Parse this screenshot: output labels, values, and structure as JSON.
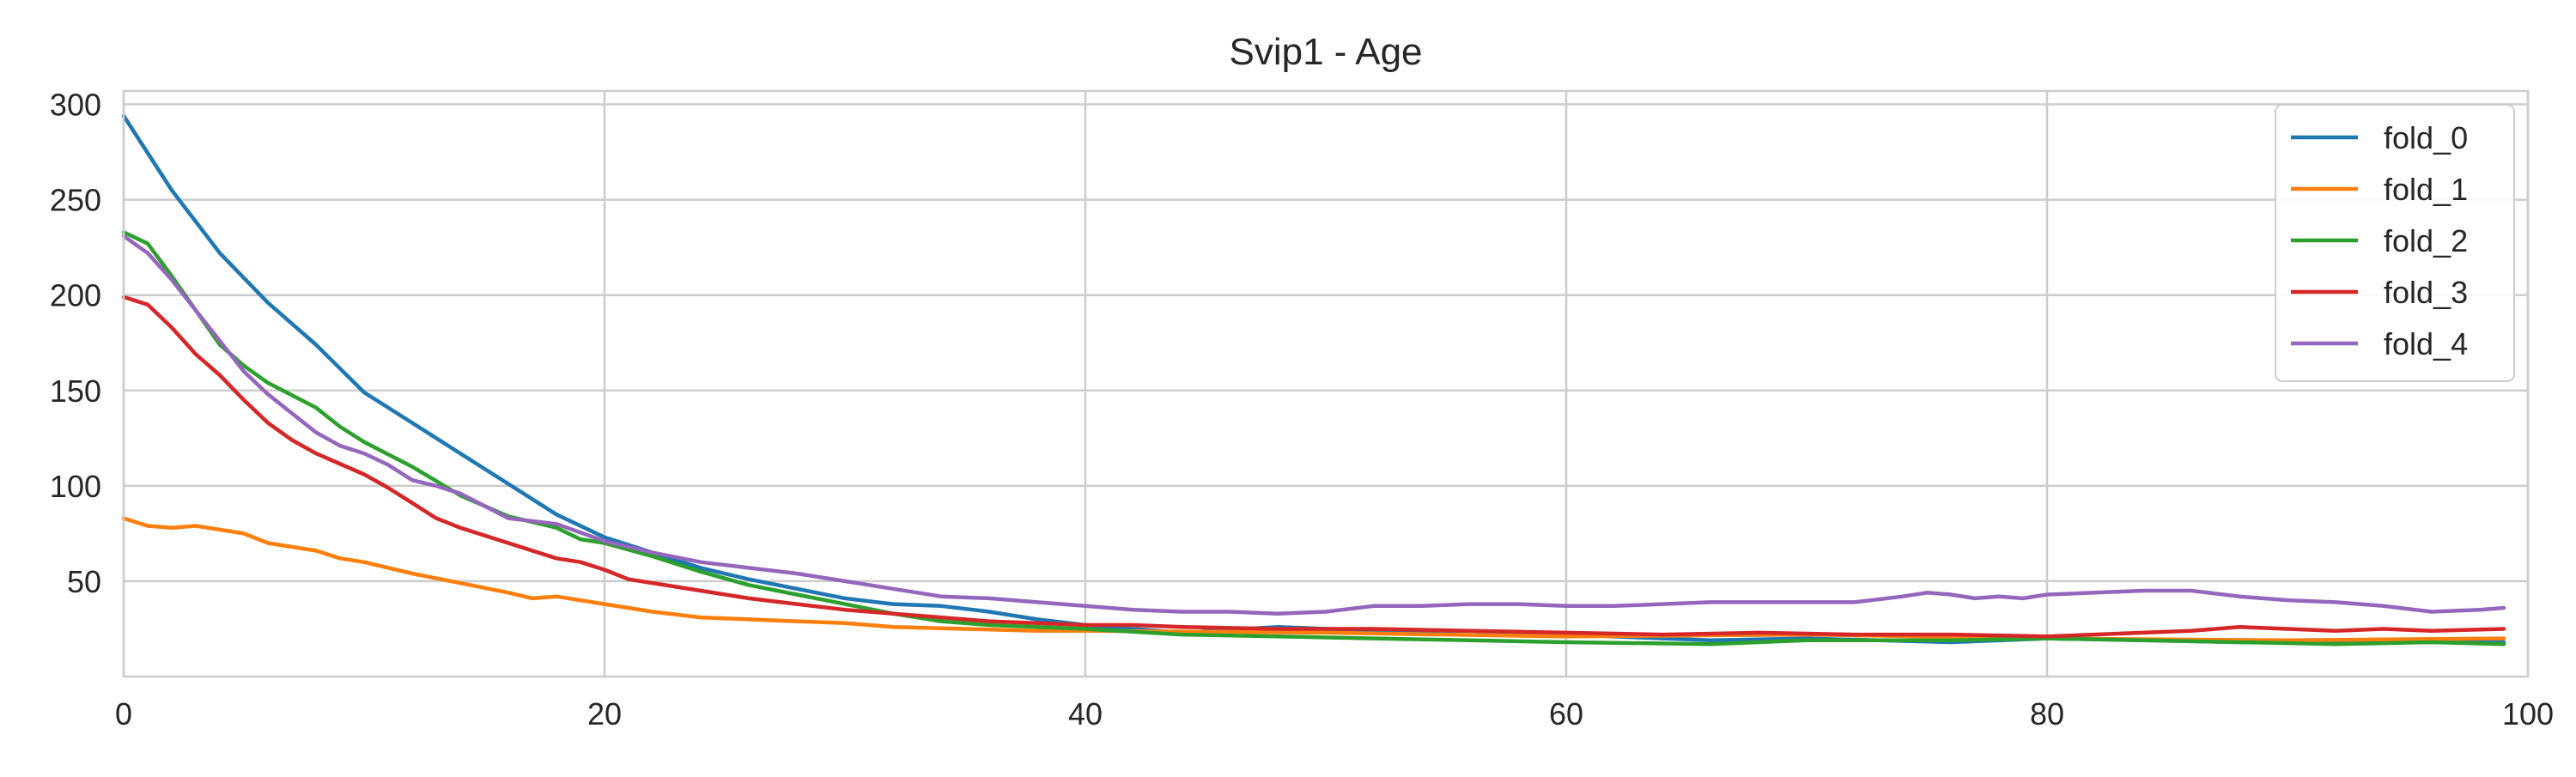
{
  "chart_data": {
    "type": "line",
    "title": "Svip1 - Age",
    "xlabel": "",
    "ylabel": "",
    "xlim": [
      0,
      100
    ],
    "ylim": [
      0,
      307
    ],
    "xticks": [
      0,
      20,
      40,
      60,
      80,
      100
    ],
    "yticks": [
      50,
      100,
      150,
      200,
      250,
      300
    ],
    "grid": true,
    "legend_position": "top-right",
    "series": [
      {
        "name": "fold_0",
        "color": "#1f77b4",
        "points": [
          [
            0,
            294
          ],
          [
            2,
            255
          ],
          [
            4,
            222
          ],
          [
            6,
            196
          ],
          [
            8,
            174
          ],
          [
            10,
            149
          ],
          [
            12,
            133
          ],
          [
            14,
            117
          ],
          [
            16,
            101
          ],
          [
            18,
            85
          ],
          [
            20,
            73
          ],
          [
            22,
            65
          ],
          [
            24,
            57
          ],
          [
            26,
            51
          ],
          [
            28,
            46
          ],
          [
            30,
            41
          ],
          [
            32,
            38
          ],
          [
            34,
            37
          ],
          [
            36,
            34
          ],
          [
            38,
            30
          ],
          [
            40,
            27
          ],
          [
            44,
            23
          ],
          [
            48,
            26
          ],
          [
            52,
            24
          ],
          [
            56,
            24
          ],
          [
            60,
            22
          ],
          [
            66,
            19
          ],
          [
            70,
            20
          ],
          [
            76,
            18
          ],
          [
            80,
            20
          ],
          [
            84,
            19
          ],
          [
            88,
            18
          ],
          [
            92,
            18
          ],
          [
            96,
            18
          ],
          [
            99,
            18
          ]
        ]
      },
      {
        "name": "fold_1",
        "color": "#ff7f0e",
        "points": [
          [
            0,
            83
          ],
          [
            1,
            79
          ],
          [
            2,
            78
          ],
          [
            3,
            79
          ],
          [
            4,
            77
          ],
          [
            5,
            75
          ],
          [
            6,
            70
          ],
          [
            8,
            66
          ],
          [
            9,
            62
          ],
          [
            10,
            60
          ],
          [
            12,
            54
          ],
          [
            14,
            49
          ],
          [
            16,
            44
          ],
          [
            17,
            41
          ],
          [
            18,
            42
          ],
          [
            20,
            38
          ],
          [
            22,
            34
          ],
          [
            24,
            31
          ],
          [
            26,
            30
          ],
          [
            28,
            29
          ],
          [
            30,
            28
          ],
          [
            32,
            26
          ],
          [
            35,
            25
          ],
          [
            38,
            24
          ],
          [
            40,
            24
          ],
          [
            50,
            23
          ],
          [
            60,
            21
          ],
          [
            70,
            22
          ],
          [
            80,
            20
          ],
          [
            90,
            19
          ],
          [
            99,
            20
          ]
        ]
      },
      {
        "name": "fold_2",
        "color": "#2ca02c",
        "points": [
          [
            0,
            233
          ],
          [
            1,
            227
          ],
          [
            2,
            210
          ],
          [
            3,
            192
          ],
          [
            4,
            174
          ],
          [
            5,
            163
          ],
          [
            6,
            154
          ],
          [
            8,
            141
          ],
          [
            9,
            131
          ],
          [
            10,
            123
          ],
          [
            12,
            110
          ],
          [
            14,
            95
          ],
          [
            16,
            84
          ],
          [
            18,
            78
          ],
          [
            19,
            72
          ],
          [
            20,
            70
          ],
          [
            22,
            63
          ],
          [
            24,
            55
          ],
          [
            26,
            48
          ],
          [
            28,
            43
          ],
          [
            30,
            38
          ],
          [
            32,
            33
          ],
          [
            34,
            29
          ],
          [
            36,
            27
          ],
          [
            38,
            26
          ],
          [
            40,
            25
          ],
          [
            44,
            22
          ],
          [
            48,
            21
          ],
          [
            52,
            20
          ],
          [
            56,
            19
          ],
          [
            60,
            18
          ],
          [
            66,
            17
          ],
          [
            70,
            19
          ],
          [
            76,
            19
          ],
          [
            80,
            20
          ],
          [
            84,
            19
          ],
          [
            88,
            18
          ],
          [
            92,
            17
          ],
          [
            96,
            18
          ],
          [
            99,
            17
          ]
        ]
      },
      {
        "name": "fold_3",
        "color": "#d62728",
        "points": [
          [
            0,
            199
          ],
          [
            1,
            195
          ],
          [
            2,
            183
          ],
          [
            3,
            169
          ],
          [
            4,
            158
          ],
          [
            5,
            145
          ],
          [
            6,
            133
          ],
          [
            7,
            124
          ],
          [
            8,
            117
          ],
          [
            10,
            106
          ],
          [
            11,
            99
          ],
          [
            12,
            91
          ],
          [
            13,
            83
          ],
          [
            14,
            78
          ],
          [
            16,
            70
          ],
          [
            18,
            62
          ],
          [
            19,
            60
          ],
          [
            20,
            56
          ],
          [
            21,
            51
          ],
          [
            22,
            49
          ],
          [
            24,
            45
          ],
          [
            26,
            41
          ],
          [
            28,
            38
          ],
          [
            30,
            35
          ],
          [
            32,
            33
          ],
          [
            34,
            31
          ],
          [
            36,
            29
          ],
          [
            38,
            28
          ],
          [
            40,
            27
          ],
          [
            42,
            27
          ],
          [
            44,
            26
          ],
          [
            48,
            25
          ],
          [
            52,
            25
          ],
          [
            56,
            24
          ],
          [
            60,
            23
          ],
          [
            64,
            22
          ],
          [
            68,
            23
          ],
          [
            72,
            22
          ],
          [
            76,
            22
          ],
          [
            80,
            21
          ],
          [
            84,
            23
          ],
          [
            86,
            24
          ],
          [
            88,
            26
          ],
          [
            90,
            25
          ],
          [
            92,
            24
          ],
          [
            94,
            25
          ],
          [
            96,
            24
          ],
          [
            99,
            25
          ]
        ]
      },
      {
        "name": "fold_4",
        "color": "#9467bd",
        "points": [
          [
            0,
            231
          ],
          [
            1,
            222
          ],
          [
            2,
            208
          ],
          [
            3,
            192
          ],
          [
            4,
            176
          ],
          [
            5,
            160
          ],
          [
            6,
            148
          ],
          [
            8,
            128
          ],
          [
            9,
            121
          ],
          [
            10,
            117
          ],
          [
            11,
            111
          ],
          [
            12,
            103
          ],
          [
            13,
            100
          ],
          [
            14,
            96
          ],
          [
            16,
            83
          ],
          [
            18,
            80
          ],
          [
            20,
            71
          ],
          [
            22,
            65
          ],
          [
            24,
            60
          ],
          [
            26,
            57
          ],
          [
            28,
            54
          ],
          [
            30,
            50
          ],
          [
            32,
            46
          ],
          [
            34,
            42
          ],
          [
            36,
            41
          ],
          [
            38,
            39
          ],
          [
            40,
            37
          ],
          [
            42,
            35
          ],
          [
            44,
            34
          ],
          [
            46,
            34
          ],
          [
            48,
            33
          ],
          [
            50,
            34
          ],
          [
            52,
            37
          ],
          [
            54,
            37
          ],
          [
            56,
            38
          ],
          [
            58,
            38
          ],
          [
            60,
            37
          ],
          [
            62,
            37
          ],
          [
            64,
            38
          ],
          [
            66,
            39
          ],
          [
            68,
            39
          ],
          [
            70,
            39
          ],
          [
            72,
            39
          ],
          [
            74,
            42
          ],
          [
            75,
            44
          ],
          [
            76,
            43
          ],
          [
            77,
            41
          ],
          [
            78,
            42
          ],
          [
            79,
            41
          ],
          [
            80,
            43
          ],
          [
            82,
            44
          ],
          [
            84,
            45
          ],
          [
            86,
            45
          ],
          [
            88,
            42
          ],
          [
            90,
            40
          ],
          [
            92,
            39
          ],
          [
            94,
            37
          ],
          [
            96,
            34
          ],
          [
            98,
            35
          ],
          [
            99,
            36
          ]
        ]
      }
    ]
  }
}
